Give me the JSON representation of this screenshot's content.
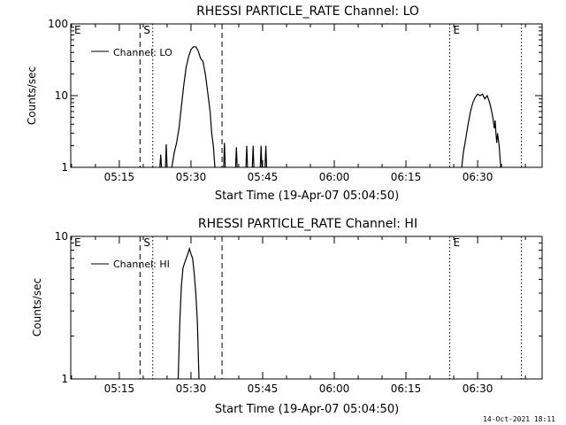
{
  "footer_timestamp": "14-Oct-2021 18:11",
  "chart_data": [
    {
      "type": "line",
      "title": "RHESSI PARTICLE_RATE Channel: LO",
      "xlabel": "Start Time (19-Apr-07 05:04:50)",
      "ylabel": "Counts/sec",
      "yscale": "log",
      "ylim": [
        1,
        100
      ],
      "xlim": [
        "05:04:50",
        "06:43:30"
      ],
      "x_ticks": [
        "05:15",
        "05:30",
        "05:45",
        "06:00",
        "06:15",
        "06:30"
      ],
      "y_ticks": [
        "1",
        "10",
        "100"
      ],
      "legend": {
        "entries": [
          "Channel: LO"
        ],
        "position": "top-left"
      },
      "markers": [
        {
          "label": "E",
          "time": "05:04:50",
          "style": "dotted"
        },
        {
          "label": "S",
          "time": "05:19:20",
          "style": "dashed"
        },
        {
          "label": "",
          "time": "05:22:00",
          "style": "dotted"
        },
        {
          "label": "",
          "time": "05:36:30",
          "style": "dashed"
        },
        {
          "label": "E",
          "time": "06:24:10",
          "style": "dotted"
        },
        {
          "label": "",
          "time": "06:39:10",
          "style": "dotted"
        }
      ],
      "series": [
        {
          "name": "Channel: LO",
          "segments": [
            [
              [
                "05:23:30",
                1
              ],
              [
                "05:23:40",
                1.5
              ],
              [
                "05:23:50",
                1
              ]
            ],
            [
              [
                "05:24:40",
                1
              ],
              [
                "05:24:50",
                2.1
              ],
              [
                "05:25:00",
                1
              ]
            ],
            [
              [
                "05:26:00",
                1
              ],
              [
                "05:26:30",
                1.6
              ],
              [
                "05:27:00",
                2.2
              ],
              [
                "05:27:30",
                3.5
              ],
              [
                "05:28:00",
                7
              ],
              [
                "05:28:30",
                14
              ],
              [
                "05:29:00",
                25
              ],
              [
                "05:29:30",
                35
              ],
              [
                "05:30:00",
                44
              ],
              [
                "05:30:30",
                48
              ],
              [
                "05:31:00",
                48
              ],
              [
                "05:31:30",
                42
              ],
              [
                "05:32:00",
                33
              ],
              [
                "05:32:30",
                30
              ],
              [
                "05:33:00",
                20
              ],
              [
                "05:33:30",
                11
              ],
              [
                "05:34:00",
                6
              ],
              [
                "05:34:20",
                3
              ],
              [
                "05:34:40",
                2
              ],
              [
                "05:35:00",
                1
              ]
            ],
            [
              [
                "05:36:50",
                1
              ],
              [
                "05:37:00",
                2.2
              ],
              [
                "05:37:10",
                1
              ]
            ],
            [
              [
                "05:39:20",
                1
              ],
              [
                "05:39:30",
                1.9
              ],
              [
                "05:39:40",
                1
              ]
            ],
            [
              [
                "05:41:30",
                1
              ],
              [
                "05:41:40",
                2
              ],
              [
                "05:41:50",
                1
              ]
            ],
            [
              [
                "05:42:50",
                1
              ],
              [
                "05:43:00",
                2
              ],
              [
                "05:43:10",
                1
              ]
            ],
            [
              [
                "05:44:30",
                1
              ],
              [
                "05:44:40",
                2
              ],
              [
                "05:44:50",
                1
              ]
            ],
            [
              [
                "05:45:30",
                1
              ],
              [
                "05:45:40",
                2
              ],
              [
                "05:45:50",
                1
              ]
            ],
            [
              [
                "06:26:40",
                1
              ],
              [
                "06:27:00",
                1.6
              ],
              [
                "06:27:30",
                2.5
              ],
              [
                "06:28:00",
                4
              ],
              [
                "06:28:30",
                6
              ],
              [
                "06:29:00",
                8
              ],
              [
                "06:29:30",
                9.5
              ],
              [
                "06:30:00",
                10.5
              ],
              [
                "06:30:30",
                10
              ],
              [
                "06:31:00",
                10.5
              ],
              [
                "06:31:30",
                9
              ],
              [
                "06:32:00",
                10
              ],
              [
                "06:32:30",
                8
              ],
              [
                "06:32:50",
                6.5
              ],
              [
                "06:33:10",
                5
              ],
              [
                "06:33:30",
                3.5
              ],
              [
                "06:33:40",
                4.5
              ],
              [
                "06:33:50",
                3
              ],
              [
                "06:34:00",
                2.2
              ],
              [
                "06:34:10",
                3
              ],
              [
                "06:34:30",
                2
              ],
              [
                "06:34:50",
                1
              ]
            ]
          ]
        }
      ]
    },
    {
      "type": "line",
      "title": "RHESSI PARTICLE_RATE Channel: HI",
      "xlabel": "Start Time (19-Apr-07 05:04:50)",
      "ylabel": "Counts/sec",
      "yscale": "log",
      "ylim": [
        1,
        10
      ],
      "xlim": [
        "05:04:50",
        "06:43:30"
      ],
      "x_ticks": [
        "05:15",
        "05:30",
        "05:45",
        "06:00",
        "06:15",
        "06:30"
      ],
      "y_ticks": [
        "1",
        "10"
      ],
      "legend": {
        "entries": [
          "Channel: HI"
        ],
        "position": "top-left"
      },
      "markers": [
        {
          "label": "E",
          "time": "05:04:50",
          "style": "dotted"
        },
        {
          "label": "S",
          "time": "05:19:20",
          "style": "dashed"
        },
        {
          "label": "",
          "time": "05:22:00",
          "style": "dotted"
        },
        {
          "label": "",
          "time": "05:36:30",
          "style": "dashed"
        },
        {
          "label": "E",
          "time": "06:24:10",
          "style": "dotted"
        },
        {
          "label": "",
          "time": "06:39:10",
          "style": "dotted"
        }
      ],
      "series": [
        {
          "name": "Channel: HI",
          "segments": [
            [
              [
                "05:27:20",
                1
              ],
              [
                "05:27:40",
                2.5
              ],
              [
                "05:28:00",
                4.5
              ],
              [
                "05:28:20",
                6
              ],
              [
                "05:28:40",
                6.5
              ],
              [
                "05:29:00",
                7
              ],
              [
                "05:29:20",
                7.5
              ],
              [
                "05:29:40",
                8.2
              ],
              [
                "05:30:00",
                7.5
              ],
              [
                "05:30:20",
                7
              ],
              [
                "05:30:40",
                5.5
              ],
              [
                "05:31:00",
                4
              ],
              [
                "05:31:20",
                2.5
              ],
              [
                "05:31:40",
                1
              ]
            ]
          ]
        }
      ]
    }
  ]
}
